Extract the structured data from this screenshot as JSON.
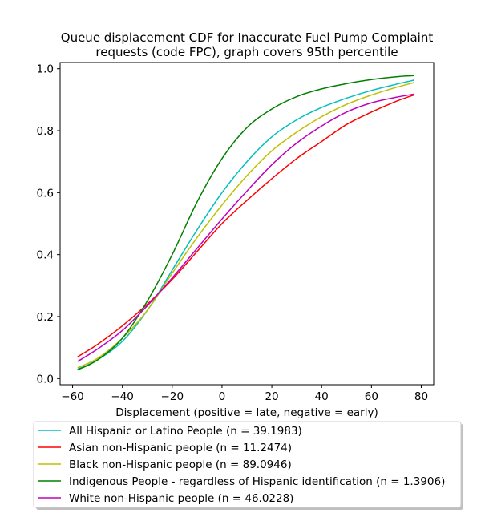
{
  "chart_data": {
    "type": "line",
    "title": [
      "Queue displacement CDF for Inaccurate Fuel Pump Complaint",
      "requests (code FPC), graph covers 95th percentile"
    ],
    "xlabel": "Displacement (positive = late, negative = early)",
    "ylabel": "",
    "xlim": [
      -65,
      85
    ],
    "ylim": [
      -0.02,
      1.02
    ],
    "xticks": [
      -60,
      -40,
      -20,
      0,
      20,
      40,
      60,
      80
    ],
    "yticks": [
      0.0,
      0.2,
      0.4,
      0.6,
      0.8,
      1.0
    ],
    "grid": false,
    "legend_position": "below",
    "x": [
      -58,
      -50,
      -40,
      -30,
      -20,
      -10,
      0,
      10,
      20,
      30,
      40,
      50,
      60,
      70,
      77
    ],
    "series": [
      {
        "name": "All Hispanic or Latino People (n = 39.1983)",
        "color": "#00bfbf",
        "values": [
          0.03,
          0.06,
          0.12,
          0.22,
          0.35,
          0.48,
          0.6,
          0.7,
          0.78,
          0.835,
          0.875,
          0.905,
          0.93,
          0.95,
          0.963
        ]
      },
      {
        "name": "Asian non-Hispanic people (n = 11.2474)",
        "color": "#ff0000",
        "values": [
          0.07,
          0.11,
          0.17,
          0.24,
          0.32,
          0.41,
          0.5,
          0.575,
          0.645,
          0.71,
          0.765,
          0.82,
          0.86,
          0.895,
          0.915
        ]
      },
      {
        "name": "Black non-Hispanic people (n = 89.0946)",
        "color": "#bfbf00",
        "values": [
          0.035,
          0.065,
          0.13,
          0.22,
          0.34,
          0.455,
          0.56,
          0.655,
          0.735,
          0.795,
          0.845,
          0.885,
          0.915,
          0.94,
          0.955
        ]
      },
      {
        "name": "Indigenous People - regardless of Hispanic identification (n = 1.3906)",
        "color": "#008000",
        "values": [
          0.028,
          0.06,
          0.13,
          0.25,
          0.4,
          0.57,
          0.71,
          0.81,
          0.87,
          0.91,
          0.935,
          0.952,
          0.965,
          0.974,
          0.978
        ]
      },
      {
        "name": "White non-Hispanic people (n = 46.0228)",
        "color": "#bf00bf",
        "values": [
          0.055,
          0.095,
          0.155,
          0.235,
          0.325,
          0.42,
          0.515,
          0.605,
          0.69,
          0.76,
          0.815,
          0.86,
          0.89,
          0.908,
          0.918
        ]
      }
    ]
  }
}
